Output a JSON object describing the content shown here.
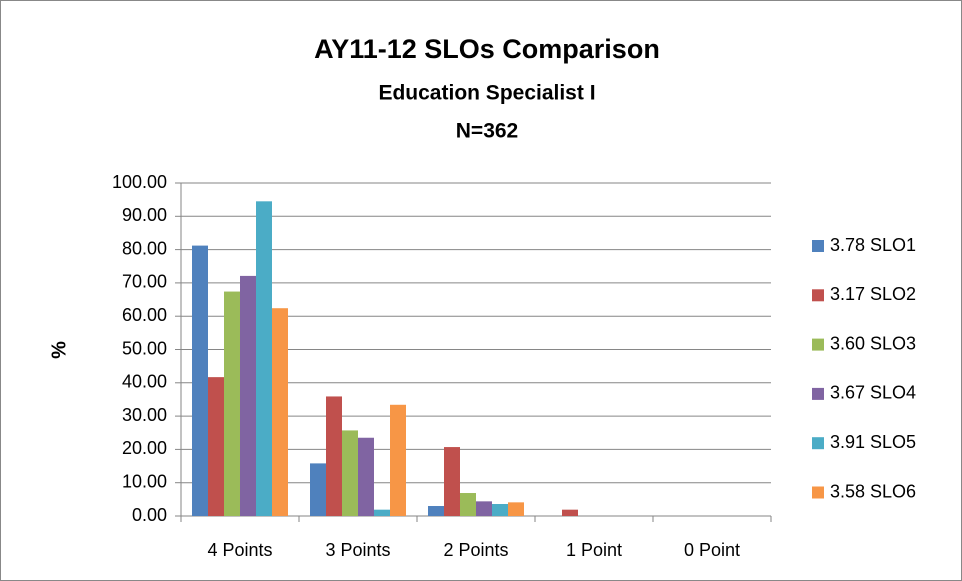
{
  "chart_data": {
    "type": "bar",
    "title": "AY11-12 SLOs Comparison",
    "subtitle": "Education Specialist I",
    "annotation": "N=362",
    "y_label": "%",
    "categories": [
      "4 Points",
      "3 Points",
      "2 Points",
      "1 Point",
      "0 Point"
    ],
    "series": [
      {
        "name": "3.78 SLO1",
        "color": "#4f81bd",
        "values": [
          81.2,
          15.8,
          3.0,
          0,
          0
        ]
      },
      {
        "name": "3.17 SLO2",
        "color": "#c0504d",
        "values": [
          41.7,
          35.9,
          20.7,
          1.9,
          0
        ]
      },
      {
        "name": "3.60 SLO3",
        "color": "#9bbb59",
        "values": [
          67.4,
          25.7,
          6.9,
          0,
          0
        ]
      },
      {
        "name": "3.67 SLO4",
        "color": "#8064a2",
        "values": [
          72.1,
          23.5,
          4.4,
          0,
          0
        ]
      },
      {
        "name": "3.91 SLO5",
        "color": "#4bacc6",
        "values": [
          94.5,
          1.9,
          3.6,
          0,
          0
        ]
      },
      {
        "name": "3.58 SLO6",
        "color": "#f79646",
        "values": [
          62.4,
          33.4,
          4.1,
          0,
          0
        ]
      }
    ],
    "ylim": [
      0,
      100
    ],
    "yticks": [
      {
        "value": 0,
        "label": "0.00"
      },
      {
        "value": 10,
        "label": "10.00"
      },
      {
        "value": 20,
        "label": "20.00"
      },
      {
        "value": 30,
        "label": "30.00"
      },
      {
        "value": 40,
        "label": "40.00"
      },
      {
        "value": 50,
        "label": "50.00"
      },
      {
        "value": 60,
        "label": "60.00"
      },
      {
        "value": 70,
        "label": "70.00"
      },
      {
        "value": 80,
        "label": "80.00"
      },
      {
        "value": 90,
        "label": "90.00"
      },
      {
        "value": 100,
        "label": "100.00"
      }
    ],
    "grid": true,
    "legend": "right"
  }
}
